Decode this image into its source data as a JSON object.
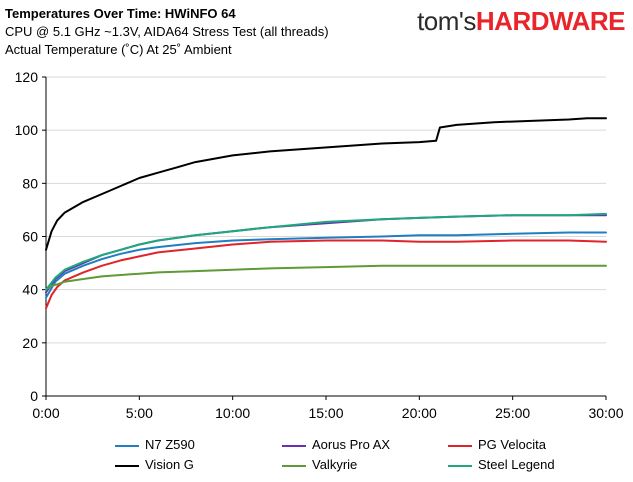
{
  "header": {
    "title": "Temperatures Over Time: HWiNFO 64",
    "subtitle": "CPU @ 5.1 GHz ~1.3V, AIDA64 Stress Test (all threads)",
    "subtitle2": "Actual Temperature (˚C) At 25˚ Ambient",
    "logo_part1": "tom's",
    "logo_part2": "HARDWARE"
  },
  "chart_data": {
    "type": "line",
    "title": "Temperatures Over Time: HWiNFO 64",
    "ylim": [
      0,
      120
    ],
    "yticks": [
      0,
      20,
      40,
      60,
      80,
      100,
      120
    ],
    "xlim": [
      0,
      30
    ],
    "xticks": [
      0,
      5,
      10,
      15,
      20,
      25,
      30
    ],
    "xtick_labels": [
      "0:00",
      "5:00",
      "10:00",
      "15:00",
      "20:00",
      "25:00",
      "30:00"
    ],
    "grid": "horizontal",
    "legend_position": "bottom",
    "series": [
      {
        "name": "N7 Z590",
        "color": "#1f7fc1",
        "x": [
          0,
          0.5,
          1,
          2,
          3,
          4,
          5,
          6,
          8,
          10,
          12,
          15,
          18,
          20,
          22,
          25,
          28,
          30
        ],
        "values": [
          37,
          43,
          46,
          49,
          51.5,
          53.5,
          55,
          56,
          57.5,
          58.5,
          59,
          59.5,
          60,
          60.5,
          60.5,
          61,
          61.5,
          61.5
        ]
      },
      {
        "name": "Aorus Pro AX",
        "color": "#6a2fb5",
        "x": [
          0,
          0.5,
          1,
          2,
          3,
          4,
          5,
          6,
          8,
          10,
          12,
          15,
          18,
          20,
          22,
          25,
          28,
          30
        ],
        "values": [
          39,
          44,
          47,
          50,
          53,
          55,
          57,
          58.5,
          60.5,
          62,
          63.5,
          65,
          66.5,
          67,
          67.5,
          68,
          68,
          68
        ]
      },
      {
        "name": "PG Velocita",
        "color": "#e0242b",
        "x": [
          0,
          0.3,
          0.6,
          1,
          2,
          3,
          4,
          5,
          6,
          8,
          10,
          12,
          15,
          18,
          20,
          22,
          25,
          28,
          30
        ],
        "values": [
          33,
          38,
          41,
          43.5,
          46.5,
          49,
          51,
          52.5,
          54,
          55.5,
          57,
          58,
          58.5,
          58.5,
          58,
          58,
          58.5,
          58.5,
          58
        ]
      },
      {
        "name": "Vision G",
        "color": "#000000",
        "x": [
          0,
          0.3,
          0.6,
          1,
          1.5,
          2,
          3,
          4,
          5,
          6,
          7,
          8,
          10,
          12,
          14,
          16,
          18,
          20,
          20.9,
          21.1,
          22,
          24,
          26,
          28,
          29,
          30
        ],
        "values": [
          55,
          62,
          66,
          69,
          71,
          73,
          76,
          79,
          82,
          84,
          86,
          88,
          90.5,
          92,
          93,
          94,
          95,
          95.5,
          96,
          101,
          102,
          103,
          103.5,
          104,
          104.5,
          104.5
        ]
      },
      {
        "name": "Valkyrie",
        "color": "#5e9a35",
        "x": [
          0,
          0.3,
          0.6,
          1,
          2,
          3,
          4,
          5,
          6,
          8,
          10,
          12,
          15,
          18,
          20,
          22,
          25,
          28,
          30
        ],
        "values": [
          40,
          41.5,
          42,
          43,
          44,
          45,
          45.5,
          46,
          46.5,
          47,
          47.5,
          48,
          48.5,
          49,
          49,
          49,
          49,
          49,
          49
        ]
      },
      {
        "name": "Steel Legend",
        "color": "#1fa87c",
        "x": [
          0,
          0.5,
          1,
          2,
          3,
          4,
          5,
          6,
          8,
          10,
          12,
          15,
          18,
          20,
          22,
          25,
          28,
          30
        ],
        "values": [
          40,
          44.5,
          47.5,
          50.5,
          53,
          55,
          57,
          58.5,
          60.5,
          62,
          63.5,
          65.5,
          66.5,
          67,
          67.5,
          68,
          68,
          68.5
        ]
      }
    ]
  }
}
